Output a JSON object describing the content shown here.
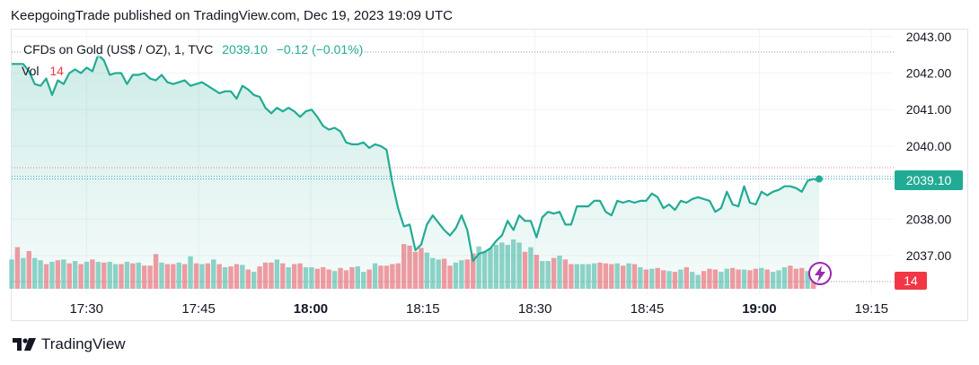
{
  "header": {
    "publisher_line": "KeepgoingTrade published on TradingView.com, Dec 19, 2023 19:09 UTC"
  },
  "legend": {
    "symbol": "CFDs on Gold (US$ / OZ), 1, TVC",
    "price": "2039.10",
    "change": "−0.12 (−0.01%)",
    "vol_label": "Vol",
    "vol_value": "14"
  },
  "badges": {
    "last_price": "2039.10",
    "last_volume": "14"
  },
  "footer": {
    "brand": "TradingView"
  },
  "colors": {
    "line": "#22ab94",
    "up_volume": "#22ab94",
    "down_volume": "#f23645",
    "badge_price": "#22ab94",
    "badge_volume": "#f23645"
  },
  "icons": {
    "footer_logo": "tradingview-logo-icon",
    "lightning": "lightning-icon"
  },
  "chart_data": {
    "type": "area",
    "title": "CFDs on Gold (US$ / OZ), 1, TVC",
    "ylim": [
      2036.5,
      2043.0
    ],
    "y_ticks": [
      "2043.00",
      "2042.00",
      "2041.00",
      "2040.00",
      "2038.00",
      "2037.00"
    ],
    "x_tick_labels": [
      {
        "label": "17:30",
        "bold": false
      },
      {
        "label": "17:45",
        "bold": false
      },
      {
        "label": "18:00",
        "bold": true
      },
      {
        "label": "18:15",
        "bold": false
      },
      {
        "label": "18:30",
        "bold": false
      },
      {
        "label": "18:45",
        "bold": false
      },
      {
        "label": "19:00",
        "bold": true
      },
      {
        "label": "19:15",
        "bold": false
      }
    ],
    "x_start": "17:20",
    "x_end": "19:08",
    "grid": true,
    "series": [
      {
        "type": "line",
        "values": [
          2042.25,
          2042.25,
          2042.25,
          2042.05,
          2041.7,
          2041.65,
          2041.85,
          2041.4,
          2041.8,
          2041.7,
          2042.0,
          2042.1,
          2042.0,
          2042.15,
          2042.05,
          2042.5,
          2042.35,
          2041.95,
          2042.0,
          2042.0,
          2041.7,
          2041.95,
          2041.95,
          2042.0,
          2041.85,
          2041.8,
          2041.95,
          2041.75,
          2041.7,
          2041.75,
          2041.8,
          2041.65,
          2041.7,
          2041.75,
          2041.65,
          2041.55,
          2041.45,
          2041.5,
          2041.5,
          2041.3,
          2041.65,
          2041.55,
          2041.4,
          2041.35,
          2041.05,
          2040.9,
          2041.05,
          2040.95,
          2041.05,
          2040.95,
          2040.8,
          2040.95,
          2041.0,
          2040.8,
          2040.55,
          2040.45,
          2040.5,
          2040.4,
          2040.1,
          2040.05,
          2040.05,
          2040.1,
          2039.95,
          2040.05,
          2040.0,
          2039.9,
          2039.0,
          2038.3,
          2037.8,
          2037.85,
          2037.15,
          2037.3,
          2037.85,
          2038.1,
          2037.9,
          2037.7,
          2037.55,
          2037.75,
          2038.1,
          2037.7,
          2036.85,
          2037.05,
          2037.1,
          2037.2,
          2037.4,
          2037.55,
          2037.95,
          2037.7,
          2038.1,
          2037.95,
          2037.95,
          2037.5,
          2038.05,
          2038.2,
          2038.15,
          2038.2,
          2037.85,
          2037.85,
          2038.35,
          2038.35,
          2038.35,
          2038.5,
          2038.5,
          2038.2,
          2038.1,
          2038.5,
          2038.45,
          2038.5,
          2038.45,
          2038.5,
          2038.5,
          2038.7,
          2038.6,
          2038.3,
          2038.4,
          2038.25,
          2038.5,
          2038.45,
          2038.55,
          2038.6,
          2038.55,
          2038.5,
          2038.2,
          2038.3,
          2038.75,
          2038.4,
          2038.35,
          2038.9,
          2038.45,
          2038.4,
          2038.75,
          2038.65,
          2038.75,
          2038.8,
          2038.9,
          2038.9,
          2038.85,
          2038.75,
          2039.05,
          2039.1,
          2039.05
        ],
        "last": 2039.1
      },
      {
        "type": "volume",
        "values": [
          38,
          54,
          40,
          49,
          40,
          37,
          32,
          35,
          37,
          38,
          33,
          36,
          32,
          35,
          38,
          35,
          34,
          35,
          32,
          32,
          35,
          33,
          34,
          30,
          30,
          45,
          34,
          32,
          32,
          34,
          32,
          42,
          33,
          32,
          33,
          38,
          32,
          28,
          29,
          32,
          31,
          25,
          22,
          29,
          34,
          34,
          38,
          33,
          28,
          32,
          33,
          28,
          28,
          26,
          28,
          25,
          23,
          27,
          24,
          28,
          29,
          22,
          25,
          33,
          30,
          30,
          32,
          33,
          58,
          56,
          48,
          53,
          47,
          40,
          38,
          39,
          30,
          34,
          37,
          38,
          46,
          55,
          48,
          53,
          57,
          60,
          57,
          64,
          60,
          48,
          54,
          44,
          36,
          36,
          40,
          43,
          38,
          32,
          32,
          32,
          32,
          33,
          34,
          33,
          32,
          33,
          30,
          33,
          32,
          28,
          25,
          26,
          27,
          24,
          23,
          22,
          25,
          28,
          22,
          18,
          23,
          26,
          25,
          22,
          26,
          27,
          25,
          25,
          24,
          26,
          27,
          25,
          22,
          24,
          28,
          30,
          26,
          27,
          23,
          14
        ],
        "up": [
          1,
          0,
          1,
          0,
          1,
          1,
          0,
          1,
          0,
          1,
          0,
          1,
          0,
          1,
          0,
          1,
          0,
          1,
          1,
          0,
          1,
          0,
          1,
          0,
          0,
          0,
          1,
          0,
          0,
          1,
          0,
          1,
          0,
          1,
          0,
          1,
          0,
          1,
          0,
          0,
          1,
          0,
          1,
          0,
          0,
          0,
          1,
          0,
          1,
          0,
          0,
          1,
          1,
          0,
          0,
          0,
          1,
          0,
          0,
          0,
          1,
          1,
          0,
          1,
          0,
          0,
          0,
          0,
          0,
          0,
          0,
          0,
          1,
          1,
          1,
          0,
          0,
          1,
          1,
          0,
          0,
          1,
          1,
          1,
          1,
          1,
          1,
          1,
          1,
          0,
          1,
          0,
          1,
          1,
          0,
          1,
          0,
          0,
          1,
          1,
          1,
          1,
          0,
          0,
          0,
          1,
          0,
          1,
          0,
          1,
          0,
          1,
          0,
          0,
          1,
          0,
          1,
          0,
          1,
          1,
          0,
          0,
          0,
          1,
          1,
          0,
          0,
          1,
          0,
          0,
          1,
          0,
          1,
          1,
          1,
          0,
          0,
          0,
          1,
          0
        ]
      }
    ]
  }
}
